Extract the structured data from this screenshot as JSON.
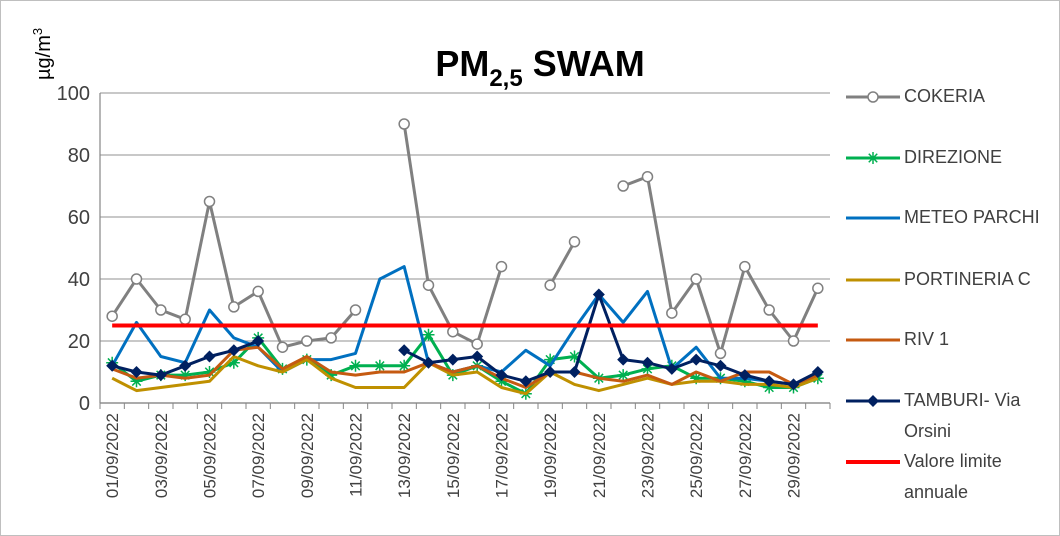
{
  "chart_data": {
    "type": "line",
    "title": "PM",
    "title_subscript": "2,5",
    "title_suffix": " SWAM",
    "y_label": "µg/m",
    "y_label_superscript": "3",
    "categories": [
      "01/09/2022",
      null,
      "03/09/2022",
      null,
      "05/09/2022",
      null,
      "07/09/2022",
      null,
      "09/09/2022",
      null,
      "11/09/2022",
      null,
      "13/09/2022",
      null,
      "15/09/2022",
      null,
      "17/09/2022",
      null,
      "19/09/2022",
      null,
      "21/09/2022",
      null,
      "23/09/2022",
      null,
      "25/09/2022",
      null,
      "27/09/2022",
      null,
      "29/09/2022",
      null
    ],
    "ylim": [
      0,
      100
    ],
    "yticks": [
      0,
      20,
      40,
      60,
      80,
      100
    ],
    "grid": true,
    "series": [
      {
        "name": "COKERIA",
        "color": "#808080",
        "marker": "circle",
        "width": 3,
        "values": [
          28,
          40,
          30,
          27,
          65,
          31,
          36,
          18,
          20,
          21,
          30,
          null,
          90,
          38,
          23,
          19,
          44,
          null,
          38,
          52,
          null,
          70,
          73,
          29,
          40,
          16,
          44,
          30,
          20,
          37
        ]
      },
      {
        "name": "DIREZIONE",
        "color": "#00b050",
        "marker": "star",
        "width": 3,
        "values": [
          13,
          7,
          9,
          9,
          10,
          13,
          21,
          11,
          14,
          9,
          12,
          12,
          12,
          22,
          9,
          12,
          7,
          3,
          14,
          15,
          8,
          9,
          11,
          12,
          8,
          8,
          7,
          5,
          5,
          8
        ]
      },
      {
        "name": "METEO PARCHI",
        "color": "#0070c0",
        "marker": "none",
        "width": 3,
        "values": [
          12,
          26,
          15,
          13,
          30,
          21,
          18,
          10,
          14,
          14,
          16,
          40,
          44,
          13,
          10,
          12,
          10,
          17,
          12,
          24,
          35,
          26,
          36,
          11,
          18,
          8,
          8,
          7,
          6,
          9
        ]
      },
      {
        "name": "PORTINERIA C",
        "color": "#bf9000",
        "marker": "none",
        "width": 3,
        "values": [
          8,
          4,
          5,
          6,
          7,
          15,
          12,
          10,
          14,
          8,
          5,
          5,
          5,
          13,
          9,
          10,
          5,
          3,
          10,
          6,
          4,
          6,
          8,
          6,
          7,
          7,
          6,
          6,
          5,
          8
        ]
      },
      {
        "name": "RIV 1",
        "color": "#c55a11",
        "marker": "none",
        "width": 3,
        "values": [
          11,
          8,
          9,
          8,
          9,
          17,
          18,
          11,
          15,
          10,
          9,
          10,
          10,
          13,
          10,
          12,
          8,
          5,
          10,
          10,
          8,
          7,
          9,
          6,
          10,
          7,
          10,
          10,
          6,
          9
        ]
      },
      {
        "name": "TAMBURI- Via Orsini",
        "color": "#002060",
        "marker": "diamond",
        "width": 3,
        "values": [
          12,
          10,
          9,
          12,
          15,
          17,
          20,
          null,
          null,
          null,
          null,
          null,
          17,
          13,
          14,
          15,
          9,
          7,
          10,
          10,
          35,
          14,
          13,
          11,
          14,
          12,
          9,
          7,
          6,
          10
        ]
      },
      {
        "name": "Valore limite annuale",
        "color": "#ff0000",
        "marker": "none",
        "width": 4,
        "values": [
          25,
          25,
          25,
          25,
          25,
          25,
          25,
          25,
          25,
          25,
          25,
          25,
          25,
          25,
          25,
          25,
          25,
          25,
          25,
          25,
          25,
          25,
          25,
          25,
          25,
          25,
          25,
          25,
          25,
          25
        ]
      }
    ]
  }
}
